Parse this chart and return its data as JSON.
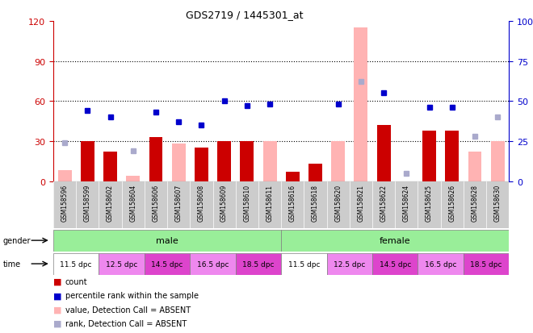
{
  "title": "GDS2719 / 1445301_at",
  "samples": [
    "GSM158596",
    "GSM158599",
    "GSM158602",
    "GSM158604",
    "GSM158606",
    "GSM158607",
    "GSM158608",
    "GSM158609",
    "GSM158610",
    "GSM158611",
    "GSM158616",
    "GSM158618",
    "GSM158620",
    "GSM158621",
    "GSM158622",
    "GSM158624",
    "GSM158625",
    "GSM158626",
    "GSM158628",
    "GSM158630"
  ],
  "count_values": [
    0,
    30,
    22,
    0,
    33,
    0,
    25,
    30,
    30,
    0,
    7,
    13,
    0,
    0,
    42,
    0,
    38,
    38,
    0,
    0
  ],
  "count_absent": [
    8,
    0,
    0,
    4,
    0,
    28,
    0,
    0,
    0,
    30,
    0,
    0,
    30,
    115,
    0,
    0,
    0,
    0,
    22,
    30
  ],
  "rank_present": [
    0,
    44,
    40,
    0,
    43,
    37,
    35,
    50,
    47,
    48,
    0,
    0,
    48,
    0,
    55,
    0,
    46,
    46,
    0,
    0
  ],
  "rank_absent": [
    24,
    0,
    0,
    19,
    0,
    0,
    0,
    0,
    0,
    0,
    0,
    0,
    0,
    62,
    0,
    5,
    0,
    0,
    28,
    40
  ],
  "ylim_left": [
    0,
    120
  ],
  "ylim_right": [
    0,
    100
  ],
  "yticks_left": [
    0,
    30,
    60,
    90,
    120
  ],
  "yticks_right": [
    0,
    25,
    50,
    75,
    100
  ],
  "ytick_labels_right": [
    "0",
    "25",
    "50",
    "75",
    "100%"
  ],
  "color_count": "#cc0000",
  "color_rank": "#0000cc",
  "color_absent_value": "#ffb3b3",
  "color_absent_rank": "#aaaacc",
  "color_male_bg": "#99ee99",
  "color_female_bg": "#99ee99",
  "time_colors": [
    "#ffffff",
    "#ee88ee",
    "#dd44cc",
    "#ee88ee",
    "#dd44cc",
    "#ffffff",
    "#ee88ee",
    "#dd44cc",
    "#ee88ee",
    "#dd44cc"
  ],
  "time_labels": [
    "11.5 dpc",
    "12.5 dpc",
    "14.5 dpc",
    "16.5 dpc",
    "18.5 dpc",
    "11.5 dpc",
    "12.5 dpc",
    "14.5 dpc",
    "16.5 dpc",
    "18.5 dpc"
  ],
  "legend_labels": [
    "count",
    "percentile rank within the sample",
    "value, Detection Call = ABSENT",
    "rank, Detection Call = ABSENT"
  ],
  "legend_colors": [
    "#cc0000",
    "#0000cc",
    "#ffb3b3",
    "#aaaacc"
  ],
  "sample_label_bg": "#cccccc"
}
